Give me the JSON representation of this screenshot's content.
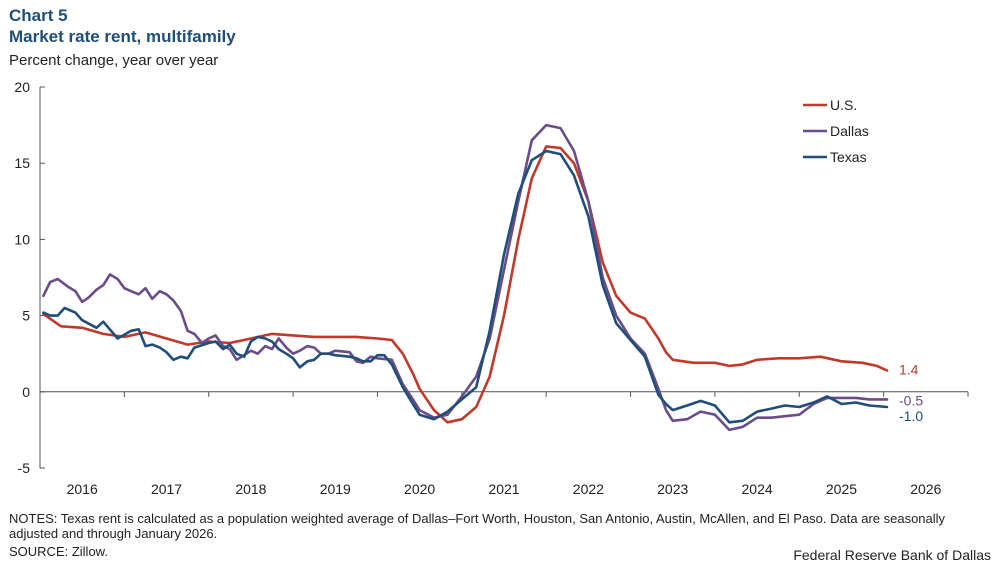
{
  "header": {
    "chart_label": "Chart 5",
    "title": "Market rate rent, multifamily",
    "subtitle": "Percent change, year over year"
  },
  "footer": {
    "notes": "NOTES: Texas rent is calculated as a population weighted average of Dallas–Fort Worth, Houston, San Antonio, Austin, McAllen, and El Paso. Data are seasonally adjusted and through January 2026.",
    "source": "SOURCE: Zillow.",
    "credit": "Federal Reserve Bank of Dallas"
  },
  "chart_data": {
    "type": "line",
    "title": "Market rate rent, multifamily",
    "ylabel": "Percent change, year over year",
    "xlabel": "",
    "ylim": [
      -5,
      20
    ],
    "yticks": [
      -5,
      0,
      5,
      10,
      15,
      20
    ],
    "xlim": [
      2015.5,
      2026.5
    ],
    "xticks": [
      "2016",
      "2017",
      "2018",
      "2019",
      "2020",
      "2021",
      "2022",
      "2023",
      "2024",
      "2025",
      "2026"
    ],
    "legend_position": "top-right",
    "end_labels": [
      {
        "series": "U.S.",
        "text": "1.4"
      },
      {
        "series": "Dallas",
        "text": "-0.5"
      },
      {
        "series": "Texas",
        "text": "-1.0"
      }
    ],
    "series": [
      {
        "name": "U.S.",
        "color": "#c0392b",
        "points": [
          [
            2015.54,
            5.1
          ],
          [
            2015.75,
            4.3
          ],
          [
            2016.0,
            4.2
          ],
          [
            2016.25,
            3.8
          ],
          [
            2016.5,
            3.6
          ],
          [
            2016.75,
            3.9
          ],
          [
            2017.0,
            3.5
          ],
          [
            2017.25,
            3.1
          ],
          [
            2017.5,
            3.3
          ],
          [
            2017.75,
            3.2
          ],
          [
            2018.0,
            3.5
          ],
          [
            2018.25,
            3.8
          ],
          [
            2018.5,
            3.7
          ],
          [
            2018.75,
            3.6
          ],
          [
            2019.0,
            3.6
          ],
          [
            2019.25,
            3.6
          ],
          [
            2019.5,
            3.5
          ],
          [
            2019.67,
            3.4
          ],
          [
            2019.8,
            2.5
          ],
          [
            2019.92,
            1.2
          ],
          [
            2020.0,
            0.2
          ],
          [
            2020.17,
            -1.2
          ],
          [
            2020.33,
            -2.0
          ],
          [
            2020.5,
            -1.8
          ],
          [
            2020.67,
            -1.0
          ],
          [
            2020.83,
            1.0
          ],
          [
            2021.0,
            5.0
          ],
          [
            2021.17,
            10.0
          ],
          [
            2021.33,
            14.0
          ],
          [
            2021.5,
            16.1
          ],
          [
            2021.67,
            16.0
          ],
          [
            2021.83,
            15.0
          ],
          [
            2022.0,
            12.5
          ],
          [
            2022.17,
            8.5
          ],
          [
            2022.33,
            6.3
          ],
          [
            2022.5,
            5.2
          ],
          [
            2022.67,
            4.8
          ],
          [
            2022.83,
            3.5
          ],
          [
            2022.92,
            2.6
          ],
          [
            2023.0,
            2.1
          ],
          [
            2023.25,
            1.9
          ],
          [
            2023.5,
            1.9
          ],
          [
            2023.67,
            1.7
          ],
          [
            2023.83,
            1.8
          ],
          [
            2024.0,
            2.1
          ],
          [
            2024.25,
            2.2
          ],
          [
            2024.5,
            2.2
          ],
          [
            2024.75,
            2.3
          ],
          [
            2025.0,
            2.0
          ],
          [
            2025.25,
            1.9
          ],
          [
            2025.42,
            1.7
          ],
          [
            2025.54,
            1.4
          ]
        ]
      },
      {
        "name": "Dallas",
        "color": "#6b4c8a",
        "points": [
          [
            2015.54,
            6.3
          ],
          [
            2015.62,
            7.2
          ],
          [
            2015.71,
            7.4
          ],
          [
            2015.83,
            6.9
          ],
          [
            2015.92,
            6.6
          ],
          [
            2016.0,
            5.9
          ],
          [
            2016.08,
            6.2
          ],
          [
            2016.17,
            6.7
          ],
          [
            2016.25,
            7.0
          ],
          [
            2016.33,
            7.7
          ],
          [
            2016.42,
            7.4
          ],
          [
            2016.5,
            6.8
          ],
          [
            2016.58,
            6.6
          ],
          [
            2016.67,
            6.4
          ],
          [
            2016.75,
            6.8
          ],
          [
            2016.83,
            6.1
          ],
          [
            2016.92,
            6.6
          ],
          [
            2017.0,
            6.4
          ],
          [
            2017.08,
            6.0
          ],
          [
            2017.17,
            5.3
          ],
          [
            2017.25,
            4.0
          ],
          [
            2017.33,
            3.8
          ],
          [
            2017.42,
            3.2
          ],
          [
            2017.5,
            3.5
          ],
          [
            2017.58,
            3.7
          ],
          [
            2017.67,
            3.0
          ],
          [
            2017.75,
            2.8
          ],
          [
            2017.83,
            2.1
          ],
          [
            2017.92,
            2.4
          ],
          [
            2018.0,
            2.7
          ],
          [
            2018.08,
            2.5
          ],
          [
            2018.17,
            3.0
          ],
          [
            2018.25,
            2.8
          ],
          [
            2018.33,
            3.5
          ],
          [
            2018.42,
            2.9
          ],
          [
            2018.5,
            2.5
          ],
          [
            2018.58,
            2.7
          ],
          [
            2018.67,
            3.0
          ],
          [
            2018.75,
            2.9
          ],
          [
            2018.83,
            2.5
          ],
          [
            2018.92,
            2.5
          ],
          [
            2019.0,
            2.7
          ],
          [
            2019.17,
            2.6
          ],
          [
            2019.25,
            2.0
          ],
          [
            2019.33,
            1.9
          ],
          [
            2019.42,
            2.3
          ],
          [
            2019.5,
            2.2
          ],
          [
            2019.67,
            2.1
          ],
          [
            2019.8,
            0.5
          ],
          [
            2019.92,
            -0.5
          ],
          [
            2020.0,
            -1.2
          ],
          [
            2020.17,
            -1.7
          ],
          [
            2020.33,
            -1.5
          ],
          [
            2020.5,
            -0.3
          ],
          [
            2020.67,
            1.0
          ],
          [
            2020.83,
            3.5
          ],
          [
            2021.0,
            8.0
          ],
          [
            2021.17,
            12.5
          ],
          [
            2021.33,
            16.5
          ],
          [
            2021.5,
            17.5
          ],
          [
            2021.67,
            17.3
          ],
          [
            2021.83,
            15.8
          ],
          [
            2022.0,
            12.5
          ],
          [
            2022.17,
            7.5
          ],
          [
            2022.33,
            5.0
          ],
          [
            2022.5,
            3.5
          ],
          [
            2022.67,
            2.5
          ],
          [
            2022.83,
            0.2
          ],
          [
            2022.92,
            -1.2
          ],
          [
            2023.0,
            -1.9
          ],
          [
            2023.17,
            -1.8
          ],
          [
            2023.33,
            -1.3
          ],
          [
            2023.5,
            -1.5
          ],
          [
            2023.67,
            -2.5
          ],
          [
            2023.83,
            -2.3
          ],
          [
            2024.0,
            -1.7
          ],
          [
            2024.17,
            -1.7
          ],
          [
            2024.33,
            -1.6
          ],
          [
            2024.5,
            -1.5
          ],
          [
            2024.67,
            -0.8
          ],
          [
            2024.83,
            -0.4
          ],
          [
            2025.0,
            -0.4
          ],
          [
            2025.17,
            -0.4
          ],
          [
            2025.33,
            -0.5
          ],
          [
            2025.54,
            -0.5
          ]
        ]
      },
      {
        "name": "Texas",
        "color": "#1f4e79",
        "points": [
          [
            2015.54,
            5.2
          ],
          [
            2015.62,
            5.0
          ],
          [
            2015.71,
            5.0
          ],
          [
            2015.79,
            5.5
          ],
          [
            2015.92,
            5.2
          ],
          [
            2016.0,
            4.7
          ],
          [
            2016.17,
            4.2
          ],
          [
            2016.25,
            4.6
          ],
          [
            2016.42,
            3.5
          ],
          [
            2016.58,
            4.0
          ],
          [
            2016.67,
            4.1
          ],
          [
            2016.75,
            3.0
          ],
          [
            2016.83,
            3.1
          ],
          [
            2016.92,
            2.9
          ],
          [
            2017.0,
            2.6
          ],
          [
            2017.08,
            2.1
          ],
          [
            2017.17,
            2.3
          ],
          [
            2017.25,
            2.2
          ],
          [
            2017.33,
            2.9
          ],
          [
            2017.5,
            3.2
          ],
          [
            2017.58,
            3.3
          ],
          [
            2017.67,
            2.8
          ],
          [
            2017.75,
            3.1
          ],
          [
            2017.83,
            2.5
          ],
          [
            2017.92,
            2.3
          ],
          [
            2018.0,
            3.3
          ],
          [
            2018.08,
            3.6
          ],
          [
            2018.17,
            3.5
          ],
          [
            2018.25,
            3.3
          ],
          [
            2018.33,
            2.8
          ],
          [
            2018.42,
            2.5
          ],
          [
            2018.5,
            2.2
          ],
          [
            2018.58,
            1.6
          ],
          [
            2018.67,
            2.0
          ],
          [
            2018.75,
            2.1
          ],
          [
            2018.83,
            2.5
          ],
          [
            2018.92,
            2.5
          ],
          [
            2019.0,
            2.4
          ],
          [
            2019.17,
            2.3
          ],
          [
            2019.25,
            2.2
          ],
          [
            2019.33,
            2.0
          ],
          [
            2019.42,
            2.0
          ],
          [
            2019.5,
            2.4
          ],
          [
            2019.58,
            2.4
          ],
          [
            2019.67,
            1.8
          ],
          [
            2019.8,
            0.3
          ],
          [
            2019.92,
            -0.8
          ],
          [
            2020.0,
            -1.5
          ],
          [
            2020.17,
            -1.8
          ],
          [
            2020.33,
            -1.3
          ],
          [
            2020.5,
            -0.5
          ],
          [
            2020.67,
            0.3
          ],
          [
            2020.83,
            4.0
          ],
          [
            2021.0,
            9.0
          ],
          [
            2021.17,
            13.0
          ],
          [
            2021.33,
            15.2
          ],
          [
            2021.5,
            15.8
          ],
          [
            2021.67,
            15.6
          ],
          [
            2021.83,
            14.2
          ],
          [
            2022.0,
            11.5
          ],
          [
            2022.17,
            7.0
          ],
          [
            2022.33,
            4.5
          ],
          [
            2022.5,
            3.4
          ],
          [
            2022.67,
            2.3
          ],
          [
            2022.83,
            -0.2
          ],
          [
            2022.92,
            -0.8
          ],
          [
            2023.0,
            -1.2
          ],
          [
            2023.17,
            -0.9
          ],
          [
            2023.33,
            -0.6
          ],
          [
            2023.5,
            -0.9
          ],
          [
            2023.67,
            -2.0
          ],
          [
            2023.83,
            -1.9
          ],
          [
            2024.0,
            -1.3
          ],
          [
            2024.17,
            -1.1
          ],
          [
            2024.33,
            -0.9
          ],
          [
            2024.5,
            -1.0
          ],
          [
            2024.67,
            -0.7
          ],
          [
            2024.83,
            -0.3
          ],
          [
            2025.0,
            -0.8
          ],
          [
            2025.17,
            -0.7
          ],
          [
            2025.33,
            -0.9
          ],
          [
            2025.54,
            -1.0
          ]
        ]
      }
    ]
  }
}
